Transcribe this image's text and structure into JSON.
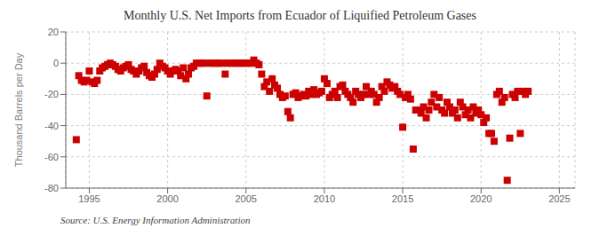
{
  "chart_data": {
    "type": "scatter",
    "title": "Monthly U.S. Net Imports from Ecuador of Liquified Petroleum Gases",
    "ylabel": "Thousand Barrels per Day",
    "annotations": [
      "Source: U.S. Energy Information Administration"
    ],
    "xlim": [
      1993.5,
      2026
    ],
    "ylim": [
      -80,
      20
    ],
    "xticks": [
      1995,
      2000,
      2005,
      2010,
      2015,
      2020,
      2025
    ],
    "yticks": [
      -80,
      -60,
      -40,
      -20,
      0,
      20
    ],
    "grid": true,
    "color": "#cc0000",
    "marker": "square",
    "x": [
      1994.17,
      1994.33,
      1994.5,
      1994.67,
      1994.83,
      1995.0,
      1995.17,
      1995.33,
      1995.5,
      1995.67,
      1995.83,
      1996.0,
      1996.17,
      1996.33,
      1996.5,
      1996.67,
      1996.83,
      1997.0,
      1997.17,
      1997.33,
      1997.5,
      1997.67,
      1997.83,
      1998.0,
      1998.17,
      1998.33,
      1998.5,
      1998.67,
      1998.83,
      1999.0,
      1999.17,
      1999.33,
      1999.5,
      1999.67,
      1999.83,
      2000.0,
      2000.17,
      2000.33,
      2000.5,
      2000.67,
      2000.83,
      2001.0,
      2001.17,
      2001.33,
      2001.5,
      2001.67,
      2001.83,
      2002.0,
      2002.17,
      2002.33,
      2002.5,
      2002.67,
      2002.83,
      2003.0,
      2003.17,
      2003.33,
      2003.5,
      2003.67,
      2003.83,
      2004.0,
      2004.17,
      2004.33,
      2004.5,
      2004.67,
      2004.83,
      2005.0,
      2005.17,
      2005.33,
      2005.5,
      2005.67,
      2005.83,
      2006.0,
      2006.17,
      2006.33,
      2006.5,
      2006.67,
      2006.83,
      2007.0,
      2007.17,
      2007.33,
      2007.5,
      2007.67,
      2007.83,
      2008.0,
      2008.17,
      2008.33,
      2008.5,
      2008.67,
      2008.83,
      2009.0,
      2009.17,
      2009.33,
      2009.5,
      2009.67,
      2009.83,
      2010.0,
      2010.17,
      2010.33,
      2010.5,
      2010.67,
      2010.83,
      2011.0,
      2011.17,
      2011.33,
      2011.5,
      2011.67,
      2011.83,
      2012.0,
      2012.17,
      2012.33,
      2012.5,
      2012.67,
      2012.83,
      2013.0,
      2013.17,
      2013.33,
      2013.5,
      2013.67,
      2013.83,
      2014.0,
      2014.17,
      2014.33,
      2014.5,
      2014.67,
      2014.83,
      2015.0,
      2015.17,
      2015.33,
      2015.5,
      2015.67,
      2015.83,
      2016.0,
      2016.17,
      2016.33,
      2016.5,
      2016.67,
      2016.83,
      2017.0,
      2017.17,
      2017.33,
      2017.5,
      2017.67,
      2017.83,
      2018.0,
      2018.17,
      2018.33,
      2018.5,
      2018.67,
      2018.83,
      2019.0,
      2019.17,
      2019.33,
      2019.5,
      2019.67,
      2019.83,
      2020.0,
      2020.17,
      2020.33,
      2020.5,
      2020.67,
      2020.83,
      2021.0,
      2021.17,
      2021.33,
      2021.5,
      2021.67,
      2021.83,
      2022.0,
      2022.17,
      2022.33,
      2022.5,
      2022.67,
      2022.83,
      2023.0
    ],
    "values": [
      -49,
      -8,
      -11,
      -12,
      -11,
      -5,
      -12,
      -13,
      -11,
      -5,
      -3,
      -2,
      -1,
      0,
      -1,
      -2,
      -4,
      -5,
      -3,
      -2,
      -1,
      -4,
      -5,
      -7,
      -5,
      -3,
      -2,
      -6,
      -8,
      -9,
      -7,
      -4,
      0,
      -2,
      -3,
      -5,
      -7,
      -5,
      -4,
      -5,
      -8,
      -3,
      -10,
      -7,
      -3,
      -2,
      0,
      0,
      0,
      0,
      -21,
      0,
      0,
      0,
      0,
      0,
      0,
      -7,
      0,
      0,
      0,
      0,
      0,
      0,
      0,
      0,
      0,
      0,
      2,
      0,
      -1,
      -7,
      -15,
      -12,
      -18,
      -10,
      -14,
      -16,
      -20,
      -22,
      -21,
      -31,
      -35,
      -20,
      -19,
      -22,
      -21,
      -20,
      -21,
      -18,
      -20,
      -17,
      -20,
      -19,
      -18,
      -10,
      -13,
      -22,
      -20,
      -18,
      -22,
      -15,
      -14,
      -18,
      -20,
      -22,
      -25,
      -18,
      -20,
      -22,
      -20,
      -15,
      -20,
      -18,
      -20,
      -25,
      -22,
      -15,
      -18,
      -12,
      -14,
      -16,
      -15,
      -18,
      -20,
      -41,
      -22,
      -20,
      -23,
      -55,
      -30,
      -30,
      -32,
      -28,
      -35,
      -30,
      -25,
      -20,
      -28,
      -22,
      -30,
      -32,
      -25,
      -28,
      -32,
      -30,
      -35,
      -25,
      -28,
      -33,
      -30,
      -35,
      -28,
      -32,
      -30,
      -33,
      -38,
      -35,
      -45,
      -45,
      -50,
      -20,
      -18,
      -25,
      -22,
      -75,
      -48,
      -20,
      -22,
      -18,
      -45,
      -18,
      -20,
      -18
    ]
  }
}
